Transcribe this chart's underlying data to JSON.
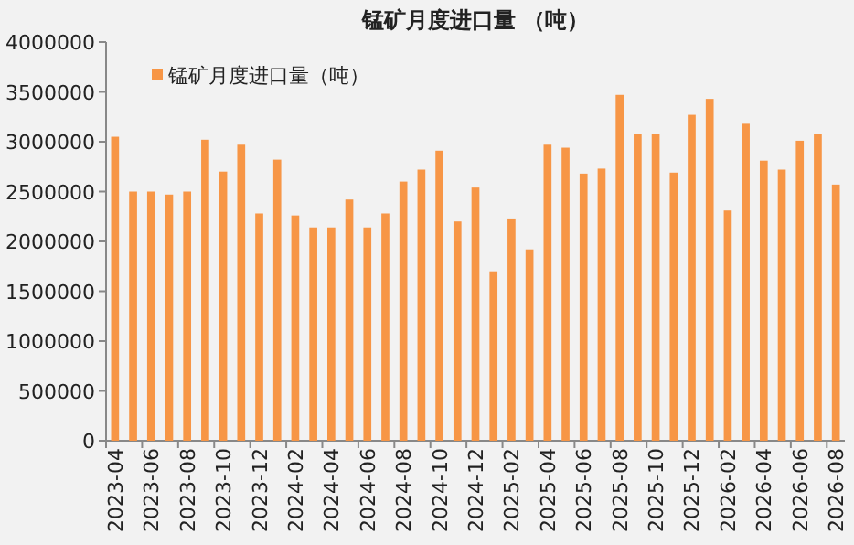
{
  "chart_data": {
    "type": "bar",
    "title": "锰矿月度进口量 （吨）",
    "categories": [
      "2023-04",
      null,
      "2023-06",
      null,
      "2023-08",
      null,
      "2023-10",
      null,
      "2023-12",
      null,
      "2024-02",
      null,
      "2024-04",
      null,
      "2024-06",
      null,
      "2024-08",
      null,
      "2024-10",
      null,
      "2024-12",
      null,
      "2025-02",
      null,
      "2025-04",
      null,
      "2025-06",
      null,
      "2025-08",
      null,
      "2025-10",
      null,
      "2025-12",
      null,
      "2026-02",
      null,
      "2026-04",
      null,
      "2026-06",
      null,
      "2026-08"
    ],
    "series": [
      {
        "name": "锰矿月度进口量（吨）",
        "color": "#f79646",
        "values": [
          3050000,
          2500000,
          2500000,
          2470000,
          2500000,
          3020000,
          2700000,
          2970000,
          2280000,
          2820000,
          2260000,
          2140000,
          2140000,
          2420000,
          2140000,
          2280000,
          2600000,
          2720000,
          2910000,
          2200000,
          2540000,
          1700000,
          2230000,
          1920000,
          2970000,
          2940000,
          2680000,
          2730000,
          3470000,
          3080000,
          3080000,
          2690000,
          3270000,
          3430000,
          2310000,
          3180000,
          2810000,
          2720000,
          3010000,
          3080000,
          2570000
        ]
      }
    ],
    "ylim": [
      0,
      4000000
    ],
    "yticks": [
      0,
      500000,
      1000000,
      1500000,
      2000000,
      2500000,
      3000000,
      3500000,
      4000000
    ],
    "grid": false,
    "legend": "top left"
  }
}
